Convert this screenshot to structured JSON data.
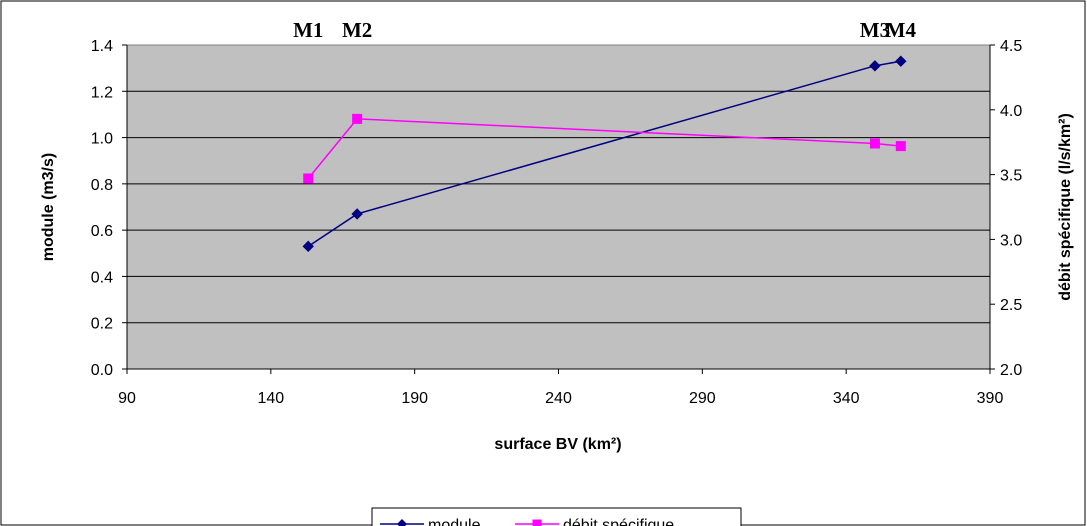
{
  "chart_data": {
    "type": "line",
    "title": "",
    "xlabel": "surface BV (km²)",
    "ylabel": "module (m3/s)",
    "y2label": "débit spécifique (l/s/km²)",
    "xlim": [
      90,
      390
    ],
    "ylim": [
      0.0,
      1.4
    ],
    "y2lim": [
      2.0,
      4.5
    ],
    "xticks": [
      "90",
      "140",
      "190",
      "240",
      "290",
      "340",
      "390"
    ],
    "yticks": [
      "0.0",
      "0.2",
      "0.4",
      "0.6",
      "0.8",
      "1.0",
      "1.2",
      "1.4"
    ],
    "y2ticks": [
      "2.0",
      "2.5",
      "3.0",
      "3.5",
      "4.0",
      "4.5"
    ],
    "grid": "horizontal",
    "plot_background": "#c0c0c0",
    "legend_position": "bottom",
    "point_labels": [
      "M1",
      "M2",
      "M3",
      "M4"
    ],
    "series": [
      {
        "name": "module",
        "axis": "left",
        "color": "#000080",
        "marker": "diamond",
        "x": [
          153,
          170,
          350,
          359
        ],
        "values": [
          0.53,
          0.67,
          1.31,
          1.33
        ]
      },
      {
        "name": "débit spécifique",
        "axis": "right",
        "color": "#ff00ff",
        "marker": "square",
        "x": [
          153,
          170,
          350,
          359
        ],
        "values": [
          3.47,
          3.93,
          3.74,
          3.72
        ]
      }
    ]
  }
}
